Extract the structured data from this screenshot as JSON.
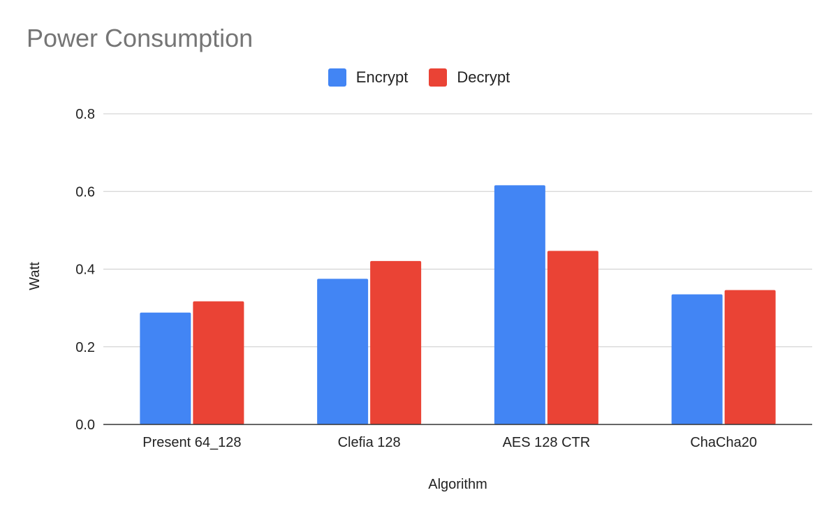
{
  "chart_data": {
    "type": "bar",
    "title": "Power Consumption",
    "xlabel": "Algorithm",
    "ylabel": "Watt",
    "categories": [
      "Present 64_128",
      "Clefia 128",
      "AES 128 CTR",
      "ChaCha20"
    ],
    "series": [
      {
        "name": "Encrypt",
        "color": "#4285f4",
        "values": [
          0.288,
          0.375,
          0.616,
          0.335
        ]
      },
      {
        "name": "Decrypt",
        "color": "#ea4335",
        "values": [
          0.317,
          0.421,
          0.447,
          0.346
        ]
      }
    ],
    "ylim": [
      0,
      0.8
    ],
    "yticks": [
      "0.0",
      "0.2",
      "0.4",
      "0.6",
      "0.8"
    ],
    "grid": true,
    "legend_position": "top-center"
  }
}
